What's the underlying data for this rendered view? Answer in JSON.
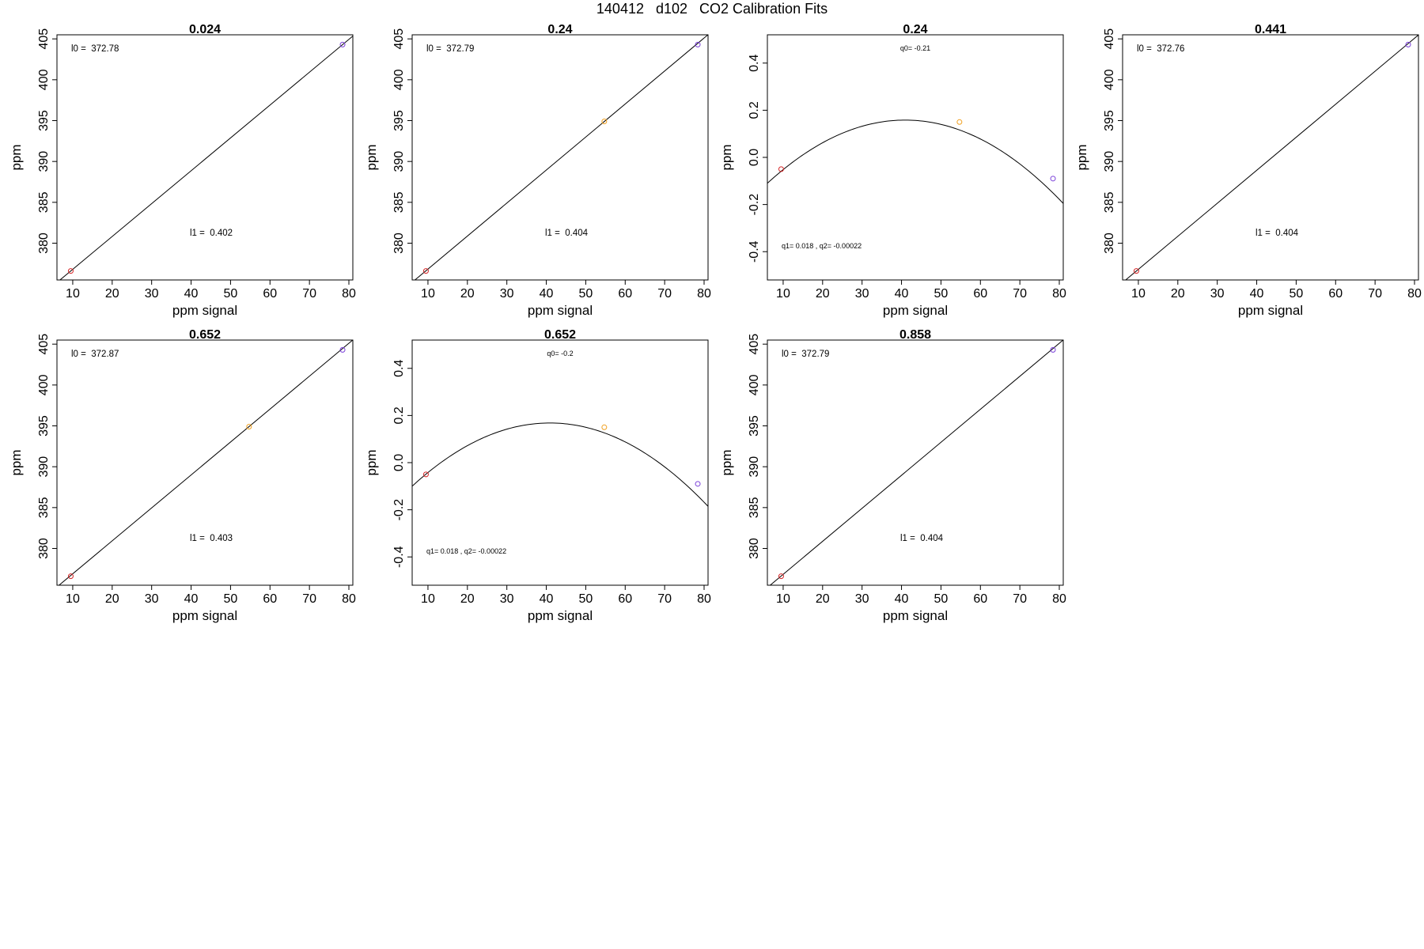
{
  "figure": {
    "title": "140412   d102   CO2 Calibration Fits"
  },
  "chart_data": [
    {
      "type": "scatter",
      "title": "0.024",
      "xlabel": "ppm signal",
      "ylabel": "ppm",
      "xlim": [
        6,
        81
      ],
      "ylim": [
        375.5,
        405.5
      ],
      "xticks": [
        "10",
        "20",
        "30",
        "40",
        "50",
        "60",
        "70",
        "80"
      ],
      "yticks": [
        "380",
        "385",
        "390",
        "395",
        "400",
        "405"
      ],
      "points": [
        {
          "x": 9.5,
          "y": 376.6,
          "color": "#d62728"
        },
        {
          "x": 78.4,
          "y": 404.3,
          "color": "#7a3fd9"
        }
      ],
      "fit": {
        "kind": "linear",
        "intercept": 372.78,
        "slope": 0.402
      },
      "annotations": [
        "l0 =  372.78",
        "l1 =  0.402"
      ]
    },
    {
      "type": "scatter",
      "title": "0.24",
      "xlabel": "ppm signal",
      "ylabel": "ppm",
      "xlim": [
        6,
        81
      ],
      "ylim": [
        375.5,
        405.5
      ],
      "xticks": [
        "10",
        "20",
        "30",
        "40",
        "50",
        "60",
        "70",
        "80"
      ],
      "yticks": [
        "380",
        "385",
        "390",
        "395",
        "400",
        "405"
      ],
      "points": [
        {
          "x": 9.5,
          "y": 376.6,
          "color": "#d62728"
        },
        {
          "x": 54.7,
          "y": 394.9,
          "color": "#f0a020"
        },
        {
          "x": 78.4,
          "y": 404.3,
          "color": "#7a3fd9"
        }
      ],
      "fit": {
        "kind": "linear",
        "intercept": 372.79,
        "slope": 0.404
      },
      "annotations": [
        "l0 =  372.79",
        "l1 =  0.404"
      ]
    },
    {
      "type": "scatter",
      "title": "0.24",
      "xlabel": "ppm signal",
      "ylabel": "ppm",
      "xlim": [
        6,
        81
      ],
      "ylim": [
        -0.52,
        0.52
      ],
      "xticks": [
        "10",
        "20",
        "30",
        "40",
        "50",
        "60",
        "70",
        "80"
      ],
      "yticks": [
        "-0.4",
        "-0.2",
        "0.0",
        "0.2",
        "0.4"
      ],
      "points": [
        {
          "x": 9.5,
          "y": -0.05,
          "color": "#d62728"
        },
        {
          "x": 54.7,
          "y": 0.15,
          "color": "#f0a020"
        },
        {
          "x": 78.4,
          "y": -0.09,
          "color": "#7a3fd9"
        }
      ],
      "fit": {
        "kind": "quadratic",
        "q0": -0.21,
        "q1": 0.018,
        "q2": -0.00022
      },
      "annotations": [
        "q0= -0.21",
        "q1= 0.018 , q2= -0.00022"
      ]
    },
    {
      "type": "scatter",
      "title": "0.441",
      "xlabel": "ppm signal",
      "ylabel": "ppm",
      "xlim": [
        6,
        81
      ],
      "ylim": [
        375.5,
        405.5
      ],
      "xticks": [
        "10",
        "20",
        "30",
        "40",
        "50",
        "60",
        "70",
        "80"
      ],
      "yticks": [
        "380",
        "385",
        "390",
        "395",
        "400",
        "405"
      ],
      "points": [
        {
          "x": 9.5,
          "y": 376.6,
          "color": "#d62728"
        },
        {
          "x": 78.4,
          "y": 404.3,
          "color": "#7a3fd9"
        }
      ],
      "fit": {
        "kind": "linear",
        "intercept": 372.76,
        "slope": 0.404
      },
      "annotations": [
        "l0 =  372.76",
        "l1 =  0.404"
      ]
    },
    {
      "type": "scatter",
      "title": "0.652",
      "xlabel": "ppm signal",
      "ylabel": "ppm",
      "xlim": [
        6,
        81
      ],
      "ylim": [
        375.5,
        405.5
      ],
      "xticks": [
        "10",
        "20",
        "30",
        "40",
        "50",
        "60",
        "70",
        "80"
      ],
      "yticks": [
        "380",
        "385",
        "390",
        "395",
        "400",
        "405"
      ],
      "points": [
        {
          "x": 9.5,
          "y": 376.6,
          "color": "#d62728"
        },
        {
          "x": 54.7,
          "y": 394.9,
          "color": "#f0a020"
        },
        {
          "x": 78.4,
          "y": 404.3,
          "color": "#7a3fd9"
        }
      ],
      "fit": {
        "kind": "linear",
        "intercept": 372.87,
        "slope": 0.403
      },
      "annotations": [
        "l0 =  372.87",
        "l1 =  0.403"
      ]
    },
    {
      "type": "scatter",
      "title": "0.652",
      "xlabel": "ppm signal",
      "ylabel": "ppm",
      "xlim": [
        6,
        81
      ],
      "ylim": [
        -0.52,
        0.52
      ],
      "xticks": [
        "10",
        "20",
        "30",
        "40",
        "50",
        "60",
        "70",
        "80"
      ],
      "yticks": [
        "-0.4",
        "-0.2",
        "0.0",
        "0.2",
        "0.4"
      ],
      "points": [
        {
          "x": 9.5,
          "y": -0.05,
          "color": "#d62728"
        },
        {
          "x": 54.7,
          "y": 0.15,
          "color": "#f0a020"
        },
        {
          "x": 78.4,
          "y": -0.09,
          "color": "#7a3fd9"
        }
      ],
      "fit": {
        "kind": "quadratic",
        "q0": -0.2,
        "q1": 0.018,
        "q2": -0.00022
      },
      "annotations": [
        "q0= -0.2",
        "q1= 0.018 , q2= -0.00022"
      ]
    },
    {
      "type": "scatter",
      "title": "0.858",
      "xlabel": "ppm signal",
      "ylabel": "ppm",
      "xlim": [
        6,
        81
      ],
      "ylim": [
        375.5,
        405.5
      ],
      "xticks": [
        "10",
        "20",
        "30",
        "40",
        "50",
        "60",
        "70",
        "80"
      ],
      "yticks": [
        "380",
        "385",
        "390",
        "395",
        "400",
        "405"
      ],
      "points": [
        {
          "x": 9.5,
          "y": 376.6,
          "color": "#d62728"
        },
        {
          "x": 78.4,
          "y": 404.3,
          "color": "#7a3fd9"
        }
      ],
      "fit": {
        "kind": "linear",
        "intercept": 372.79,
        "slope": 0.404
      },
      "annotations": [
        "l0 =  372.79",
        "l1 =  0.404"
      ]
    }
  ]
}
